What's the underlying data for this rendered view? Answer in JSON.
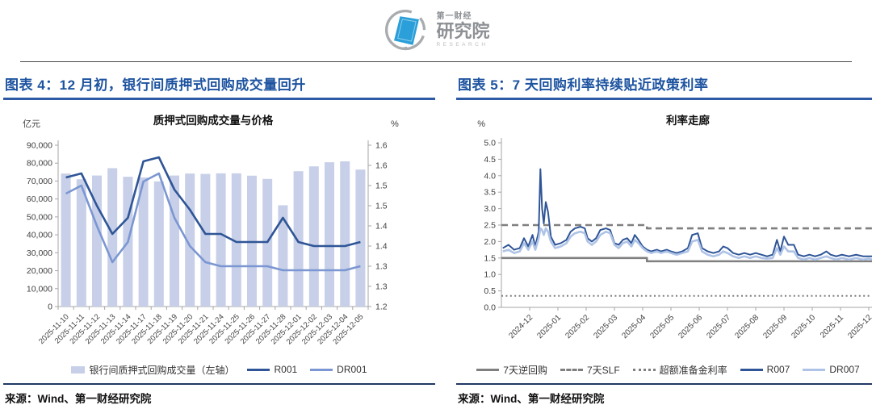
{
  "header": {
    "logo": {
      "line1": "第一财经",
      "line2": "研究院",
      "line3": "RESEARCH"
    }
  },
  "panels": [
    {
      "heading": "图表 4：12 月初，银行间质押式回购成交量回升",
      "source": "来源：Wind、第一财经研究院"
    },
    {
      "heading": "图表 5：7 天回购利率持续贴近政策利率",
      "source": "来源：Wind、第一财经研究院"
    }
  ],
  "colors": {
    "heading_blue": "#1d53a0",
    "underline_blue": "#2e5aa5",
    "bar_fill": "#c7d0e8",
    "r001": "#2f5597",
    "dr001": "#7b96d2",
    "r007": "#2f5597",
    "dr007": "#aec3e6",
    "policy_gray": "#7f7f7f",
    "axis_gray": "#a6a6a6",
    "tick_text": "#404040",
    "logo_blue": "#2b9fd9",
    "logo_gray": "#9b9b9b",
    "source_rule": "#1f3864"
  },
  "chart_data": [
    {
      "type": "bar",
      "title": "质押式回购成交量与价格",
      "left_axis_unit": "亿元",
      "right_axis_unit": "%",
      "categories": [
        "2025-11-10",
        "2025-11-11",
        "2025-11-12",
        "2025-11-13",
        "2025-11-14",
        "2025-11-17",
        "2025-11-18",
        "2025-11-19",
        "2025-11-20",
        "2025-11-21",
        "2025-11-24",
        "2025-11-25",
        "2025-11-26",
        "2025-11-27",
        "2025-11-28",
        "2025-12-01",
        "2025-12-02",
        "2025-12-03",
        "2025-12-04",
        "2025-12-05"
      ],
      "bar_series": {
        "name": "银行间质押式回购成交量（左轴）",
        "axis": "left",
        "values": [
          74200,
          71000,
          73100,
          77200,
          72400,
          72000,
          69800,
          73100,
          74200,
          74000,
          74300,
          74300,
          73000,
          71200,
          56500,
          75500,
          78200,
          80500,
          81000,
          76400
        ]
      },
      "line_series": [
        {
          "name": "R001",
          "axis": "right",
          "values": [
            1.52,
            1.53,
            1.45,
            1.38,
            1.42,
            1.56,
            1.57,
            1.49,
            1.44,
            1.38,
            1.38,
            1.36,
            1.36,
            1.36,
            1.42,
            1.36,
            1.35,
            1.35,
            1.35,
            1.36
          ]
        },
        {
          "name": "DR001",
          "axis": "right",
          "values": [
            1.48,
            1.5,
            1.4,
            1.31,
            1.36,
            1.51,
            1.53,
            1.42,
            1.35,
            1.31,
            1.3,
            1.3,
            1.3,
            1.3,
            1.29,
            1.29,
            1.29,
            1.29,
            1.29,
            1.3
          ]
        }
      ],
      "left_axis": {
        "min": 0,
        "max": 90000,
        "step": 10000,
        "tick_labels": [
          "0",
          "10,000",
          "20,000",
          "30,000",
          "40,000",
          "50,000",
          "60,000",
          "70,000",
          "80,000",
          "90,000"
        ]
      },
      "right_axis": {
        "min": 1.2,
        "max": 1.6,
        "tick_labels_bottom_to_top": [
          "1.2",
          "1.3",
          "1.3",
          "1.4",
          "1.4",
          "1.5",
          "1.5",
          "1.6",
          "1.6"
        ]
      },
      "legend_position": "bottom"
    },
    {
      "type": "line",
      "title": "利率走廊",
      "y_axis_unit": "%",
      "y_axis": {
        "min": 0.0,
        "max": 5.0,
        "step": 0.5
      },
      "x_tick_labels": [
        "2024-12",
        "2025-01",
        "2025-02",
        "2025-03",
        "2025-04",
        "2025-05",
        "2025-06",
        "2025-07",
        "2025-08",
        "2025-09",
        "2025-10",
        "2025-11",
        "2025-12"
      ],
      "x_tick_positions": [
        1,
        2,
        3,
        4,
        5,
        6,
        7,
        8,
        9,
        10,
        11,
        12,
        13
      ],
      "x_range": [
        0,
        13.2
      ],
      "legend_position": "bottom",
      "series": [
        {
          "name": "7天逆回购",
          "style": "solid",
          "color_key": "policy_gray",
          "points": [
            [
              0,
              1.5
            ],
            [
              5.15,
              1.5
            ],
            [
              5.15,
              1.4
            ],
            [
              13.2,
              1.4
            ]
          ]
        },
        {
          "name": "7天SLF",
          "style": "dashed",
          "color_key": "policy_gray",
          "points": [
            [
              0,
              2.5
            ],
            [
              5.15,
              2.5
            ],
            [
              5.15,
              2.4
            ],
            [
              13.2,
              2.4
            ]
          ]
        },
        {
          "name": "超额准备金利率",
          "style": "dotted",
          "color_key": "policy_gray",
          "points": [
            [
              0,
              0.35
            ],
            [
              13.2,
              0.35
            ]
          ]
        },
        {
          "name": "R007",
          "style": "solid",
          "color_key": "r007",
          "points": [
            [
              0.05,
              1.8
            ],
            [
              0.25,
              1.9
            ],
            [
              0.45,
              1.75
            ],
            [
              0.65,
              1.8
            ],
            [
              0.8,
              2.1
            ],
            [
              0.95,
              1.85
            ],
            [
              1.1,
              2.2
            ],
            [
              1.2,
              1.85
            ],
            [
              1.32,
              2.3
            ],
            [
              1.38,
              4.2
            ],
            [
              1.44,
              3.0
            ],
            [
              1.5,
              2.55
            ],
            [
              1.57,
              3.2
            ],
            [
              1.65,
              2.9
            ],
            [
              1.75,
              2.15
            ],
            [
              1.9,
              1.9
            ],
            [
              2.1,
              1.95
            ],
            [
              2.3,
              2.05
            ],
            [
              2.45,
              2.3
            ],
            [
              2.6,
              2.4
            ],
            [
              2.8,
              2.45
            ],
            [
              2.95,
              2.4
            ],
            [
              3.05,
              2.1
            ],
            [
              3.2,
              2.0
            ],
            [
              3.35,
              2.1
            ],
            [
              3.5,
              2.35
            ],
            [
              3.7,
              2.4
            ],
            [
              3.85,
              2.35
            ],
            [
              4.0,
              1.95
            ],
            [
              4.15,
              1.9
            ],
            [
              4.3,
              2.05
            ],
            [
              4.45,
              2.1
            ],
            [
              4.6,
              1.95
            ],
            [
              4.72,
              2.2
            ],
            [
              4.85,
              2.05
            ],
            [
              5.0,
              1.85
            ],
            [
              5.15,
              1.75
            ],
            [
              5.3,
              1.7
            ],
            [
              5.5,
              1.75
            ],
            [
              5.65,
              1.7
            ],
            [
              5.85,
              1.75
            ],
            [
              6.0,
              1.7
            ],
            [
              6.2,
              1.65
            ],
            [
              6.4,
              1.7
            ],
            [
              6.6,
              1.8
            ],
            [
              6.75,
              2.2
            ],
            [
              6.95,
              2.25
            ],
            [
              7.1,
              1.8
            ],
            [
              7.3,
              1.7
            ],
            [
              7.5,
              1.65
            ],
            [
              7.7,
              1.7
            ],
            [
              7.85,
              1.85
            ],
            [
              8.0,
              1.8
            ],
            [
              8.2,
              1.65
            ],
            [
              8.4,
              1.6
            ],
            [
              8.6,
              1.65
            ],
            [
              8.8,
              1.6
            ],
            [
              9.0,
              1.65
            ],
            [
              9.2,
              1.6
            ],
            [
              9.4,
              1.55
            ],
            [
              9.6,
              1.6
            ],
            [
              9.75,
              2.05
            ],
            [
              9.87,
              1.7
            ],
            [
              10.0,
              2.15
            ],
            [
              10.15,
              1.9
            ],
            [
              10.35,
              1.9
            ],
            [
              10.5,
              1.6
            ],
            [
              10.7,
              1.55
            ],
            [
              10.9,
              1.6
            ],
            [
              11.1,
              1.55
            ],
            [
              11.3,
              1.6
            ],
            [
              11.5,
              1.7
            ],
            [
              11.65,
              1.6
            ],
            [
              11.85,
              1.55
            ],
            [
              12.05,
              1.6
            ],
            [
              12.3,
              1.55
            ],
            [
              12.55,
              1.6
            ],
            [
              12.8,
              1.55
            ],
            [
              13.0,
              1.55
            ],
            [
              13.15,
              1.55
            ]
          ]
        },
        {
          "name": "DR007",
          "style": "solid",
          "color_key": "dr007",
          "points": [
            [
              0.05,
              1.7
            ],
            [
              0.25,
              1.75
            ],
            [
              0.45,
              1.65
            ],
            [
              0.65,
              1.7
            ],
            [
              0.8,
              1.95
            ],
            [
              0.95,
              1.75
            ],
            [
              1.1,
              2.0
            ],
            [
              1.2,
              1.75
            ],
            [
              1.32,
              2.1
            ],
            [
              1.38,
              2.4
            ],
            [
              1.44,
              2.35
            ],
            [
              1.5,
              2.2
            ],
            [
              1.57,
              2.4
            ],
            [
              1.65,
              2.3
            ],
            [
              1.75,
              2.0
            ],
            [
              1.9,
              1.8
            ],
            [
              2.1,
              1.85
            ],
            [
              2.3,
              1.95
            ],
            [
              2.45,
              2.15
            ],
            [
              2.6,
              2.25
            ],
            [
              2.8,
              2.3
            ],
            [
              2.95,
              2.25
            ],
            [
              3.05,
              2.0
            ],
            [
              3.2,
              1.9
            ],
            [
              3.35,
              2.0
            ],
            [
              3.5,
              2.2
            ],
            [
              3.7,
              2.3
            ],
            [
              3.85,
              2.25
            ],
            [
              4.0,
              1.9
            ],
            [
              4.15,
              1.8
            ],
            [
              4.3,
              1.95
            ],
            [
              4.45,
              2.0
            ],
            [
              4.6,
              1.85
            ],
            [
              4.72,
              2.05
            ],
            [
              4.85,
              1.95
            ],
            [
              5.0,
              1.8
            ],
            [
              5.15,
              1.7
            ],
            [
              5.3,
              1.65
            ],
            [
              5.5,
              1.7
            ],
            [
              5.65,
              1.65
            ],
            [
              5.85,
              1.7
            ],
            [
              6.0,
              1.65
            ],
            [
              6.2,
              1.6
            ],
            [
              6.4,
              1.65
            ],
            [
              6.6,
              1.7
            ],
            [
              6.75,
              2.0
            ],
            [
              6.95,
              2.05
            ],
            [
              7.1,
              1.7
            ],
            [
              7.3,
              1.6
            ],
            [
              7.5,
              1.55
            ],
            [
              7.7,
              1.6
            ],
            [
              7.85,
              1.7
            ],
            [
              8.0,
              1.65
            ],
            [
              8.2,
              1.55
            ],
            [
              8.4,
              1.5
            ],
            [
              8.6,
              1.55
            ],
            [
              8.8,
              1.5
            ],
            [
              9.0,
              1.55
            ],
            [
              9.2,
              1.5
            ],
            [
              9.4,
              1.48
            ],
            [
              9.6,
              1.5
            ],
            [
              9.75,
              1.8
            ],
            [
              9.87,
              1.6
            ],
            [
              10.0,
              1.85
            ],
            [
              10.15,
              1.7
            ],
            [
              10.35,
              1.7
            ],
            [
              10.5,
              1.5
            ],
            [
              10.7,
              1.45
            ],
            [
              10.9,
              1.5
            ],
            [
              11.1,
              1.45
            ],
            [
              11.3,
              1.5
            ],
            [
              11.5,
              1.55
            ],
            [
              11.65,
              1.5
            ],
            [
              11.85,
              1.45
            ],
            [
              12.05,
              1.5
            ],
            [
              12.3,
              1.45
            ],
            [
              12.55,
              1.5
            ],
            [
              12.8,
              1.45
            ],
            [
              13.0,
              1.48
            ],
            [
              13.15,
              1.45
            ]
          ]
        }
      ]
    }
  ]
}
